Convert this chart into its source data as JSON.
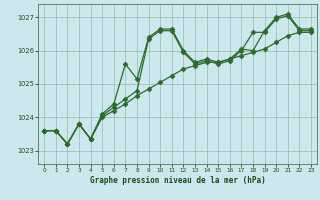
{
  "background_color": "#cce8ee",
  "grid_color": "#99bbaa",
  "line_color": "#2d6a2d",
  "markersize": 2.5,
  "linewidth": 0.9,
  "title": "Graphe pression niveau de la mer (hPa)",
  "xlim": [
    -0.5,
    23.5
  ],
  "ylim": [
    1022.6,
    1027.4
  ],
  "yticks": [
    1023,
    1024,
    1025,
    1026,
    1027
  ],
  "xticks": [
    0,
    1,
    2,
    3,
    4,
    5,
    6,
    7,
    8,
    9,
    10,
    11,
    12,
    13,
    14,
    15,
    16,
    17,
    18,
    19,
    20,
    21,
    22,
    23
  ],
  "series1": [
    1023.6,
    1023.6,
    1023.2,
    1023.8,
    1023.35,
    1024.1,
    1024.4,
    1025.6,
    1025.15,
    1026.4,
    1026.65,
    1026.65,
    1026.0,
    1025.65,
    1025.75,
    1025.65,
    1025.75,
    1026.05,
    1026.0,
    1026.6,
    1027.0,
    1027.1,
    1026.65,
    1026.65
  ],
  "series2": [
    1023.6,
    1023.6,
    1023.2,
    1023.8,
    1023.35,
    1024.0,
    1024.2,
    1024.4,
    1024.65,
    1024.85,
    1025.05,
    1025.25,
    1025.45,
    1025.55,
    1025.65,
    1025.65,
    1025.75,
    1025.85,
    1025.95,
    1026.05,
    1026.25,
    1026.45,
    1026.55,
    1026.55
  ],
  "series3": [
    1023.6,
    1023.6,
    1023.2,
    1023.8,
    1023.35,
    1024.05,
    1024.3,
    1024.55,
    1024.8,
    1026.35,
    1026.6,
    1026.6,
    1025.95,
    1025.6,
    1025.7,
    1025.6,
    1025.7,
    1026.0,
    1026.55,
    1026.55,
    1026.95,
    1027.05,
    1026.6,
    1026.6
  ]
}
